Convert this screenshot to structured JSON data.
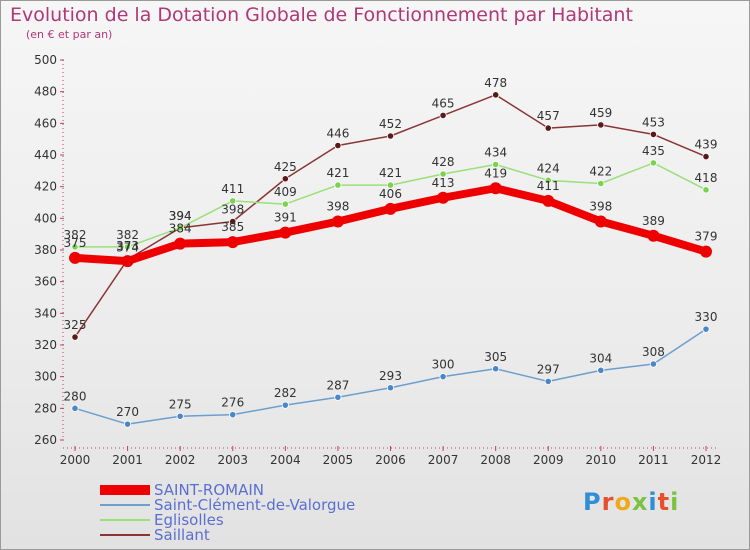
{
  "title": "Evolution de la Dotation Globale de Fonctionnement par Habitant",
  "subtitle": "(en € et par an)",
  "brand": {
    "text": "Proxiti",
    "colors": [
      "#2e8fd6",
      "#e6502a",
      "#f2a81d",
      "#7cc242",
      "#2e8fd6",
      "#e6502a",
      "#7cc242"
    ]
  },
  "chart_data": {
    "type": "line",
    "x": [
      "2000",
      "2001",
      "2002",
      "2003",
      "2004",
      "2005",
      "2006",
      "2007",
      "2008",
      "2009",
      "2010",
      "2011",
      "2012"
    ],
    "ylim": [
      260,
      500
    ],
    "yticks": [
      260,
      280,
      300,
      320,
      340,
      360,
      380,
      400,
      420,
      440,
      460,
      480,
      500
    ],
    "grid": false,
    "legend_position": "bottom-left",
    "series": [
      {
        "name": "SAINT-ROMAIN",
        "values": [
          375,
          373,
          384,
          385,
          391,
          398,
          406,
          413,
          419,
          411,
          398,
          389,
          379
        ],
        "color": "#ee0000",
        "point_color": "#ee0000",
        "width": 8,
        "labels_above": true
      },
      {
        "name": "Saint-Clément-de-Valorgue",
        "values": [
          280,
          270,
          275,
          276,
          282,
          287,
          293,
          300,
          305,
          297,
          304,
          308,
          330
        ],
        "color": "#6a9fcf",
        "point_color": "#4a86c8",
        "width": 1.5,
        "labels_above": true
      },
      {
        "name": "Eglisolles",
        "values": [
          382,
          382,
          394,
          411,
          409,
          421,
          421,
          428,
          434,
          424,
          422,
          435,
          418
        ],
        "color": "#99e07a",
        "point_color": "#7bd24e",
        "width": 1.5,
        "labels_above": true
      },
      {
        "name": "Saillant",
        "values": [
          325,
          374,
          394,
          398,
          425,
          446,
          452,
          465,
          478,
          457,
          459,
          453,
          439
        ],
        "color": "#8a3434",
        "point_color": "#5a1a1a",
        "width": 1.5,
        "labels_above": true
      }
    ]
  }
}
